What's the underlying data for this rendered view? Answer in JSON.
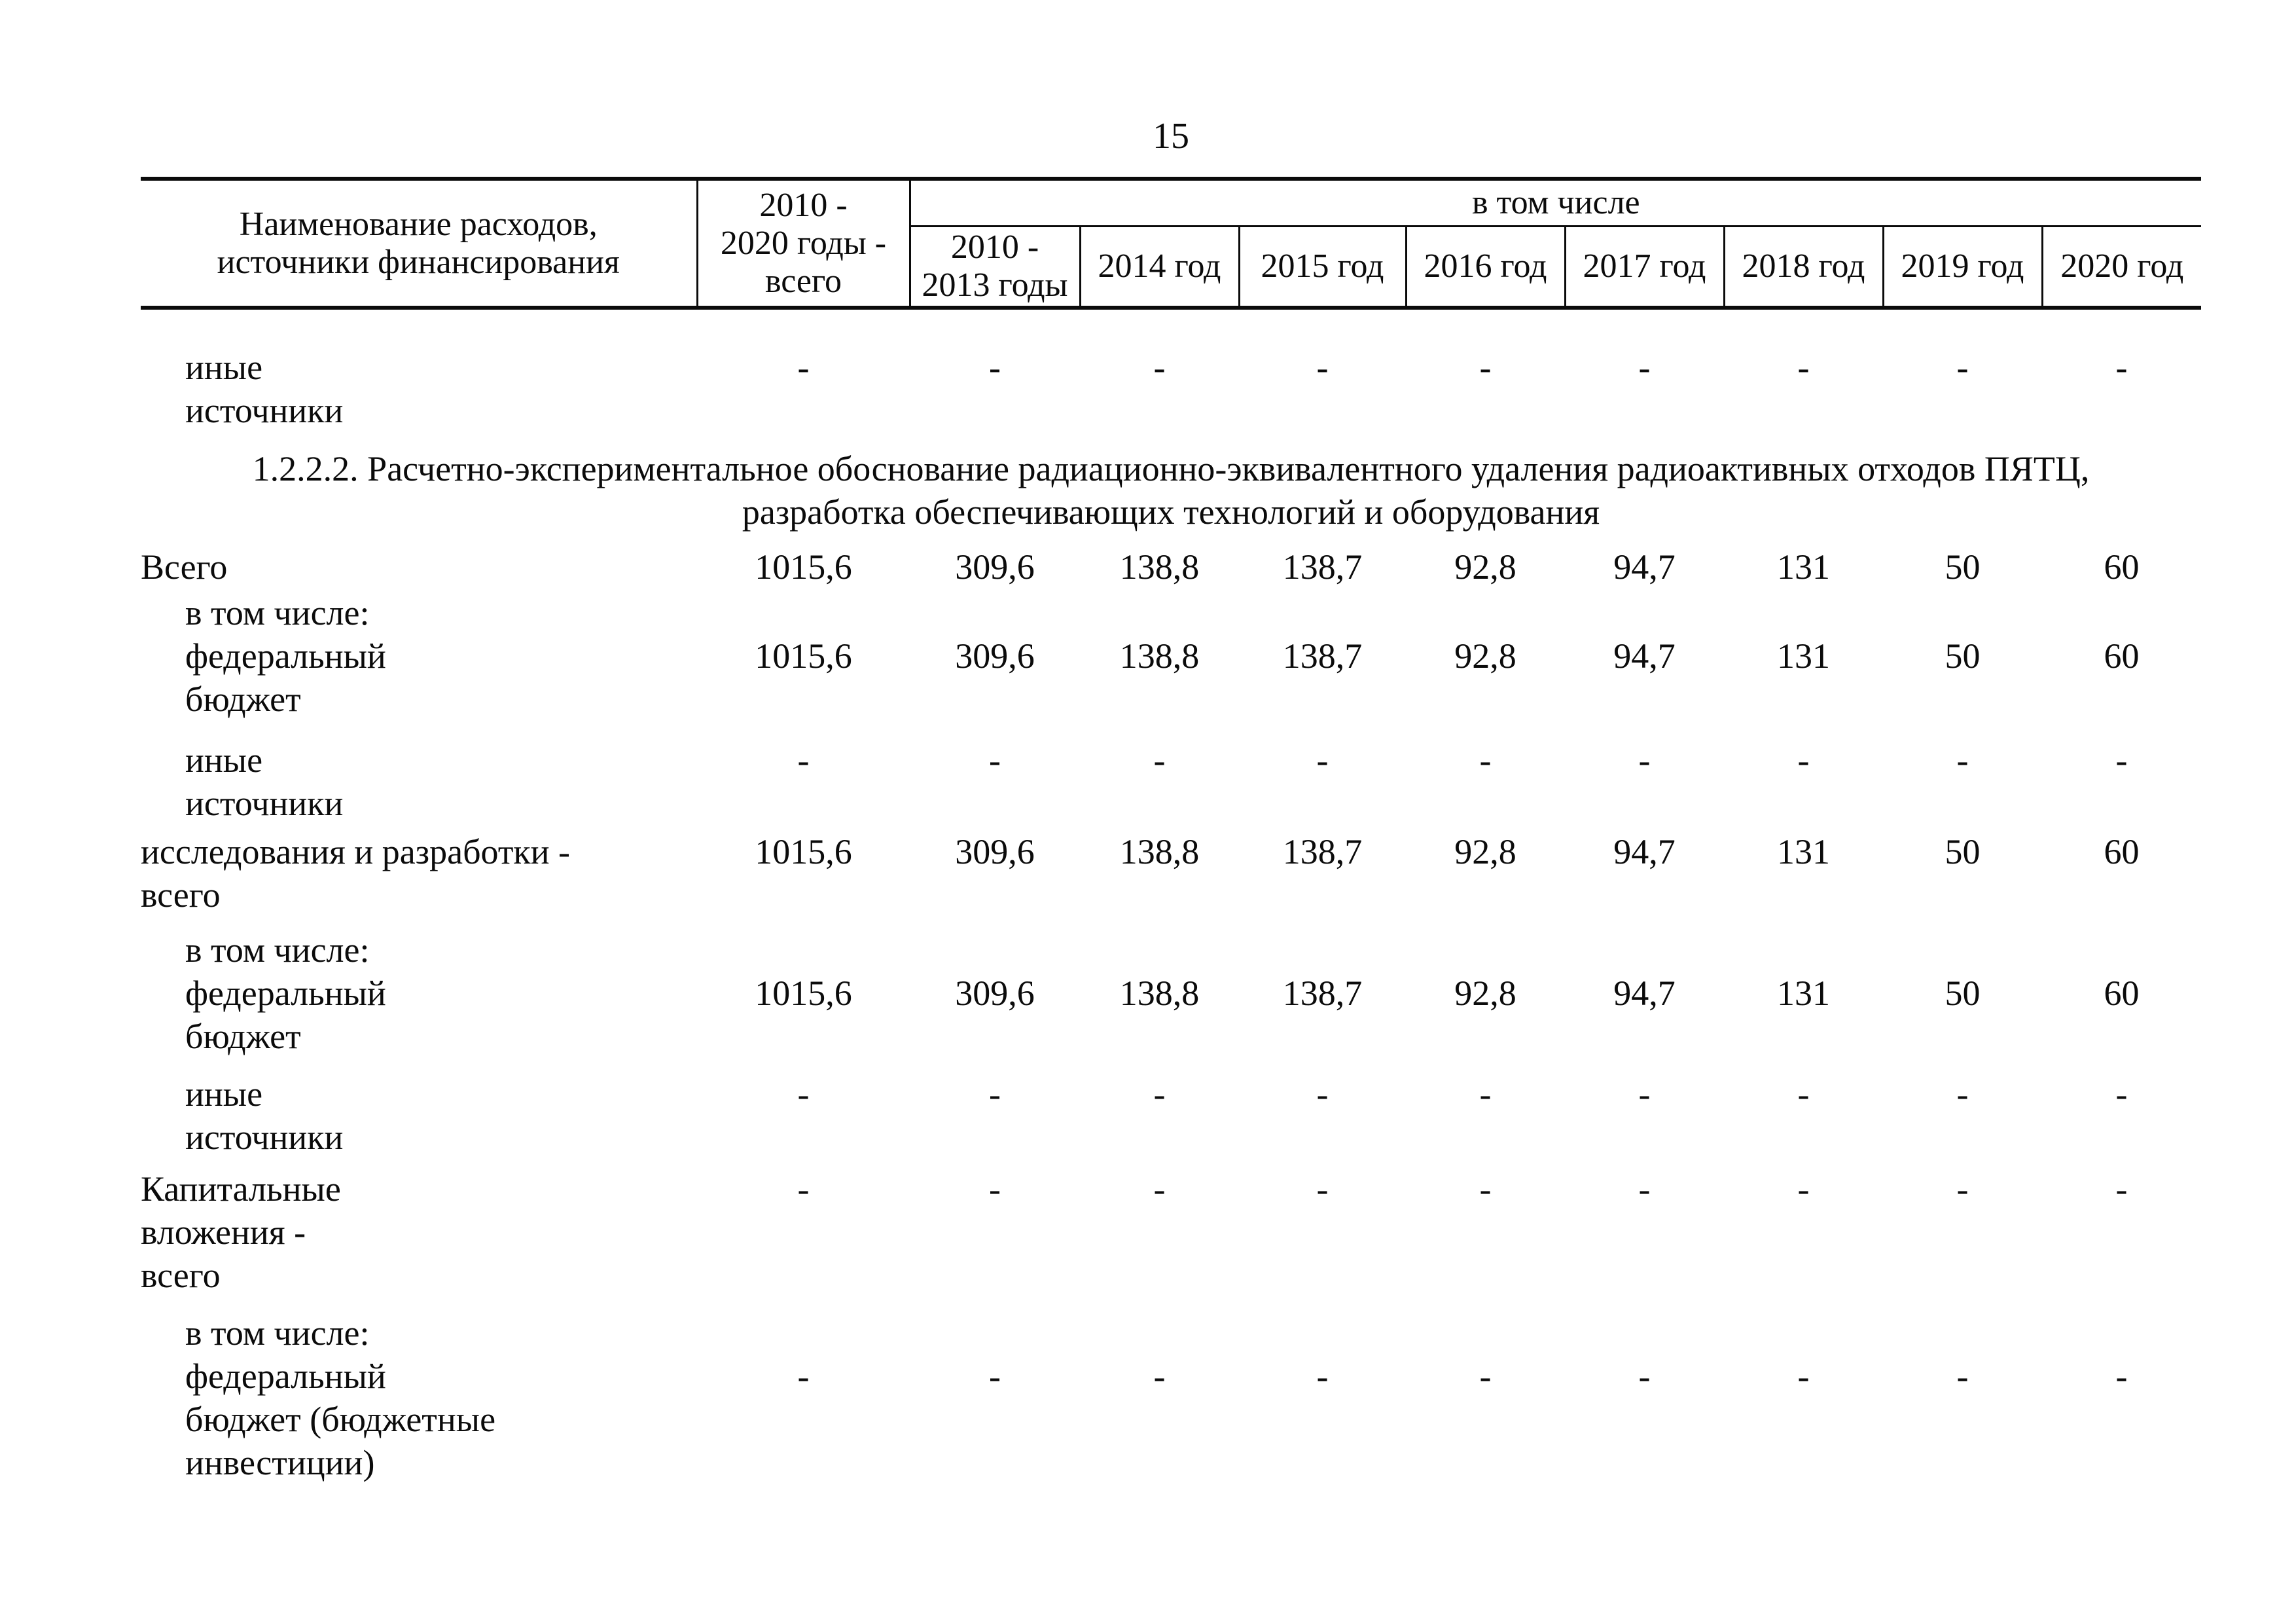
{
  "page_number": "15",
  "table": {
    "header": {
      "name_lines": [
        "Наименование расходов,",
        "источники финансирования"
      ],
      "total_lines": [
        "2010 -",
        "2020 годы -",
        "всего"
      ],
      "group_label": "в том числе",
      "first_year_lines": [
        "2010 -",
        "2013 годы"
      ],
      "years": [
        "2014 год",
        "2015 год",
        "2016 год",
        "2017 год",
        "2018 год",
        "2019 год",
        "2020 год"
      ]
    },
    "rows": [
      {
        "type": "data",
        "indent": true,
        "label_lines": [
          "иные",
          "источники"
        ],
        "values_line": 0,
        "values": [
          "-",
          "-",
          "-",
          "-",
          "-",
          "-",
          "-",
          "-",
          "-"
        ]
      },
      {
        "type": "heading",
        "lines": [
          "1.2.2.2. Расчетно-экспериментальное обоснование радиационно-эквивалентного удаления радиоактивных отходов ПЯТЦ,",
          "разработка обеспечивающих технологий и оборудования"
        ]
      },
      {
        "type": "data",
        "indent": false,
        "label_lines": [
          "Всего"
        ],
        "values_line": 0,
        "values": [
          "1015,6",
          "309,6",
          "138,8",
          "138,7",
          "92,8",
          "94,7",
          "131",
          "50",
          "60"
        ]
      },
      {
        "type": "data",
        "indent": true,
        "label_lines": [
          "в том числе:",
          "федеральный",
          "бюджет"
        ],
        "values_line": 1,
        "values": [
          "1015,6",
          "309,6",
          "138,8",
          "138,7",
          "92,8",
          "94,7",
          "131",
          "50",
          "60"
        ]
      },
      {
        "type": "data",
        "indent": true,
        "label_lines": [
          "иные",
          "источники"
        ],
        "values_line": 0,
        "values": [
          "-",
          "-",
          "-",
          "-",
          "-",
          "-",
          "-",
          "-",
          "-"
        ]
      },
      {
        "type": "data",
        "indent": false,
        "label_lines": [
          "исследования и разработки -",
          "всего"
        ],
        "values_line": 0,
        "values": [
          "1015,6",
          "309,6",
          "138,8",
          "138,7",
          "92,8",
          "94,7",
          "131",
          "50",
          "60"
        ]
      },
      {
        "type": "data",
        "indent": true,
        "label_lines": [
          "в том числе:",
          "федеральный",
          "бюджет"
        ],
        "values_line": 1,
        "values": [
          "1015,6",
          "309,6",
          "138,8",
          "138,7",
          "92,8",
          "94,7",
          "131",
          "50",
          "60"
        ]
      },
      {
        "type": "data",
        "indent": true,
        "label_lines": [
          "иные",
          "источники"
        ],
        "values_line": 0,
        "values": [
          "-",
          "-",
          "-",
          "-",
          "-",
          "-",
          "-",
          "-",
          "-"
        ]
      },
      {
        "type": "data",
        "indent": false,
        "label_lines": [
          "Капитальные",
          "вложения -",
          "всего"
        ],
        "values_line": 0,
        "values": [
          "-",
          "-",
          "-",
          "-",
          "-",
          "-",
          "-",
          "-",
          "-"
        ]
      },
      {
        "type": "data",
        "indent": true,
        "label_lines": [
          "в том числе:",
          "федеральный",
          "бюджет (бюджетные",
          "инвестиции)"
        ],
        "values_line": 1,
        "values": [
          "-",
          "-",
          "-",
          "-",
          "-",
          "-",
          "-",
          "-",
          "-"
        ]
      }
    ]
  }
}
